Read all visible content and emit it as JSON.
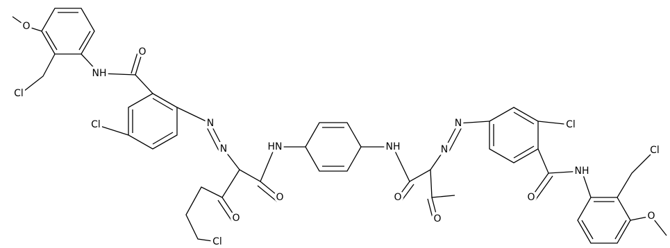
{
  "atoms": [
    {
      "label": "O"
    },
    {
      "label": "Cl"
    },
    {
      "label": "NH"
    },
    {
      "label": "O"
    },
    {
      "label": "Cl"
    },
    {
      "label": "N"
    },
    {
      "label": "N"
    },
    {
      "label": "HN"
    },
    {
      "label": "O"
    },
    {
      "label": "O"
    },
    {
      "label": "Cl"
    },
    {
      "label": "NH"
    },
    {
      "label": "O"
    },
    {
      "label": "N"
    },
    {
      "label": "N"
    },
    {
      "label": "O"
    },
    {
      "label": "Cl"
    },
    {
      "label": "NH"
    },
    {
      "label": "O"
    },
    {
      "label": "Cl"
    },
    {
      "label": "O"
    }
  ]
}
